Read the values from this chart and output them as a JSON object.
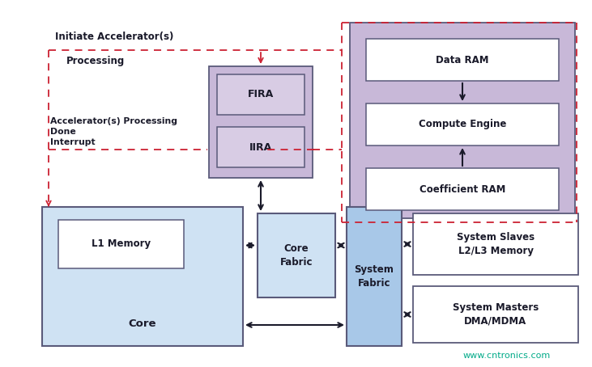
{
  "bg_color": "#ffffff",
  "light_blue": "#cfe2f3",
  "medium_blue": "#a8c8e8",
  "light_purple": "#c8b8d8",
  "inner_purple_box": "#d8cce4",
  "dark_border": "#5a5a7a",
  "red_dashed": "#cc2233",
  "arrow_dark": "#1a1a2a",
  "white_box": "#ffffff",
  "text_dark": "#1a1a2a",
  "watermark": "www.cntronics.com",
  "watermark_color": "#00aa88",
  "labels": {
    "initiate": "Initiate Accelerator(s)",
    "processing": "Processing",
    "accel_done": "Accelerator(s) Processing\nDone\nInterrupt",
    "fira": "FIRA",
    "iira": "IIRA",
    "data_ram": "Data RAM",
    "compute_engine": "Compute Engine",
    "coeff_ram": "Coefficient RAM",
    "l1_memory": "L1 Memory",
    "core": "Core",
    "core_fabric": "Core\nFabric",
    "system_fabric": "System\nFabric",
    "system_slaves": "System Slaves\nL2/L3 Memory",
    "system_masters": "System Masters\nDMA/MDMA"
  }
}
